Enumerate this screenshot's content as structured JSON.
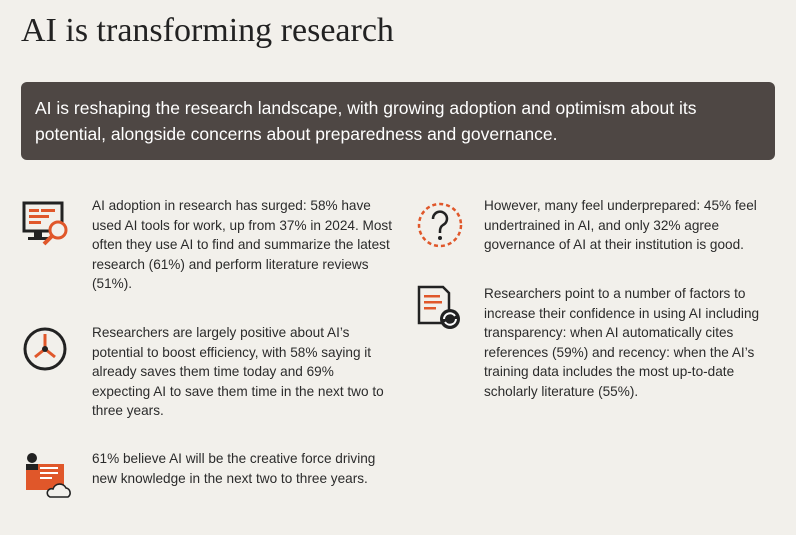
{
  "header": {
    "title": "AI is transforming research"
  },
  "banner": {
    "text": "AI is reshaping the research landscape, with growing adoption and optimism about its potential, alongside concerns about preparedness and governance."
  },
  "left_column": {
    "items": [
      {
        "text": "AI adoption in research has surged: 58% have used AI tools for work, up from 37% in 2024. Most often they use AI to find and summarize the latest research (61%) and perform literature reviews (51%)."
      },
      {
        "text": "Researchers are largely positive about AI’s potential to boost efficiency, with 58% saying it already saves them time today and 69% expecting AI to save them time in the next two to three years."
      },
      {
        "text": "61% believe AI will be the creative force driving new knowledge in the next two to three years."
      }
    ]
  },
  "right_column": {
    "items": [
      {
        "text": "However, many feel underprepared: 45% feel undertrained in AI, and only 32% agree governance of AI at their institution is good."
      },
      {
        "text": "Researchers point to a number of factors to increase their confidence in using AI including transparency: when AI automatically cites references (59%) and recency: when the AI’s training data includes the most up-to-date scholarly literature (55%)."
      }
    ]
  }
}
